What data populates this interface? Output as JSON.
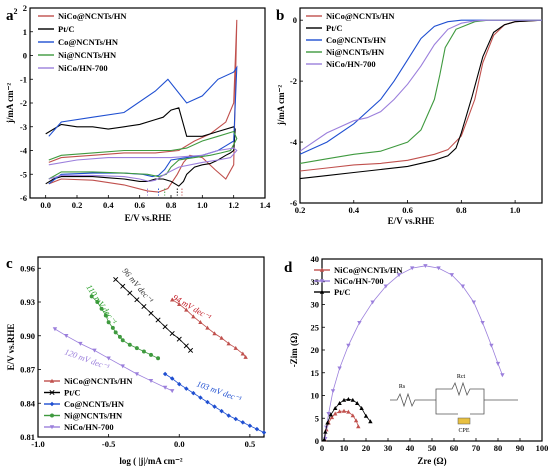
{
  "panel_labels": {
    "a": "a",
    "a_sup": "2",
    "b": "b",
    "c": "c",
    "d": "d"
  },
  "colors": {
    "NiCo@NCNTs/HN": "#c0504d",
    "Pt/C": "#000000",
    "Co@NCNTs/HN": "#1f4fd1",
    "Ni@NCNTs/HN": "#3f9a3f",
    "NiCo/HN-700": "#9b7fdc",
    "cpe": "#e8c040",
    "slope_94": "#c0141e",
    "slope_103": "#1f4fd1",
    "slope_110": "#2aa02a",
    "slope_120": "#9b7fdc",
    "slope_96": "#333333"
  },
  "chart_data": [
    {
      "id": "a",
      "type": "line",
      "title": "",
      "xlabel": "E/V vs.RHE",
      "ylabel": "j/mA cm⁻²",
      "xlim": [
        -0.1,
        1.4
      ],
      "ylim": [
        -6,
        2
      ],
      "xticks": [
        "0.0",
        "0.2",
        "0.4",
        "0.6",
        "0.8",
        "1.0",
        "1.2",
        "1.4"
      ],
      "yticks": [
        "2",
        "1",
        "0",
        "-1",
        "-2",
        "-3",
        "-4",
        "-5",
        "-6"
      ],
      "legend": [
        "NiCo@NCNTs/HN",
        "Pt/C",
        "Co@NCNTs/HN",
        "Ni@NCNTs/HN",
        "NiCo/HN-700"
      ],
      "legend_position": "top-left",
      "series": [
        {
          "name": "NiCo@NCNTs/HN",
          "x": [
            0.02,
            0.1,
            0.3,
            0.5,
            0.65,
            0.72,
            0.78,
            0.84,
            0.88,
            0.92,
            1.0,
            1.08,
            1.15,
            1.2,
            1.22,
            1.2,
            1.15,
            1.05,
            0.95,
            0.85,
            0.7,
            0.5,
            0.3,
            0.1,
            0.02
          ],
          "y": [
            -5.4,
            -5.2,
            -5.25,
            -5.45,
            -5.7,
            -5.75,
            -5.6,
            -5.0,
            -4.5,
            -4.2,
            -4.3,
            -4.8,
            -5.2,
            -4.6,
            1.5,
            -2.0,
            -2.8,
            -3.3,
            -3.6,
            -4.0,
            -4.1,
            -4.1,
            -4.2,
            -4.3,
            -4.5
          ]
        },
        {
          "name": "Pt/C",
          "x": [
            0.0,
            0.05,
            0.1,
            0.2,
            0.3,
            0.4,
            0.5,
            0.6,
            0.65,
            0.7,
            0.75,
            0.8,
            0.85,
            0.88,
            0.9,
            0.95,
            1.0,
            1.05,
            1.1,
            1.15,
            1.18,
            1.2,
            1.21,
            1.2,
            1.1,
            1.0,
            0.9,
            0.85,
            0.8,
            0.75,
            0.7,
            0.6,
            0.5,
            0.4,
            0.3,
            0.2,
            0.1,
            0.0
          ],
          "y": [
            -5.4,
            -5.2,
            -5.1,
            -5.1,
            -5.1,
            -5.15,
            -5.2,
            -5.3,
            -5.3,
            -5.2,
            -5.2,
            -5.3,
            -5.5,
            -5.3,
            -5.0,
            -4.7,
            -4.6,
            -4.55,
            -4.4,
            -4.2,
            -4.1,
            -4.0,
            -3.1,
            -3.0,
            -3.2,
            -3.4,
            -3.4,
            -2.2,
            -2.3,
            -2.6,
            -2.7,
            -2.9,
            -3.0,
            -3.1,
            -3.0,
            -3.0,
            -2.9,
            -3.3
          ]
        },
        {
          "name": "Co@NCNTs/HN",
          "x": [
            0.02,
            0.1,
            0.3,
            0.5,
            0.62,
            0.68,
            0.72,
            0.76,
            0.8,
            0.9,
            1.0,
            1.1,
            1.15,
            1.2,
            1.22,
            1.2,
            1.1,
            1.0,
            0.9,
            0.78,
            0.7,
            0.5,
            0.3,
            0.1,
            0.02
          ],
          "y": [
            -5.4,
            -5.0,
            -4.95,
            -4.95,
            -5.0,
            -5.1,
            -5.05,
            -4.8,
            -4.4,
            -4.3,
            -4.2,
            -4.0,
            -3.8,
            -3.6,
            -0.5,
            -0.7,
            -1.0,
            -1.7,
            -2.0,
            -1.0,
            -1.5,
            -2.4,
            -2.6,
            -2.8,
            -3.4
          ]
        },
        {
          "name": "Ni@NCNTs/HN",
          "x": [
            0.02,
            0.1,
            0.3,
            0.5,
            0.65,
            0.72,
            0.77,
            0.8,
            0.85,
            0.95,
            1.05,
            1.12,
            1.18,
            1.22,
            1.2,
            1.1,
            1.0,
            0.9,
            0.8,
            0.7,
            0.5,
            0.3,
            0.1,
            0.02
          ],
          "y": [
            -5.2,
            -4.9,
            -4.9,
            -4.95,
            -5.0,
            -5.1,
            -5.0,
            -4.7,
            -4.4,
            -4.3,
            -4.2,
            -4.1,
            -4.0,
            -3.5,
            -3.2,
            -3.4,
            -3.6,
            -3.9,
            -4.0,
            -4.0,
            -4.0,
            -4.1,
            -4.2,
            -4.4
          ]
        },
        {
          "name": "NiCo/HN-700",
          "x": [
            0.02,
            0.1,
            0.3,
            0.5,
            0.6,
            0.66,
            0.7,
            0.76,
            0.85,
            1.0,
            1.1,
            1.18,
            1.22,
            1.2,
            1.1,
            1.0,
            0.8,
            0.6,
            0.4,
            0.2,
            0.02
          ],
          "y": [
            -5.2,
            -5.05,
            -5.05,
            -5.1,
            -5.2,
            -5.3,
            -5.25,
            -5.0,
            -4.7,
            -4.5,
            -4.4,
            -4.3,
            -4.0,
            -3.9,
            -4.0,
            -4.2,
            -4.3,
            -4.3,
            -4.3,
            -4.4,
            -4.6
          ]
        }
      ],
      "onset_markers": {
        "x": [
          0.65,
          0.72,
          0.76,
          0.84,
          0.87
        ]
      }
    },
    {
      "id": "b",
      "type": "line",
      "title": "",
      "xlabel": "E/V vs.RHE",
      "ylabel": "j/mA cm⁻²",
      "xlim": [
        0.2,
        1.1
      ],
      "ylim": [
        -6,
        0.4
      ],
      "xticks": [
        "0.2",
        "0.4",
        "0.6",
        "0.8",
        "1.0"
      ],
      "yticks": [
        "0",
        "-2",
        "-4",
        "-6"
      ],
      "legend": [
        "NiCo@NCNTs/HN",
        "Pt/C",
        "Co@NCNTs/HN",
        "Ni@NCNTs/HN",
        "NiCo/HN-700"
      ],
      "legend_position": "top-left",
      "series": [
        {
          "name": "NiCo@NCNTs/HN",
          "x": [
            0.2,
            0.3,
            0.4,
            0.5,
            0.6,
            0.7,
            0.75,
            0.8,
            0.85,
            0.88,
            0.92,
            0.96,
            1.0,
            1.1
          ],
          "y": [
            -4.95,
            -4.85,
            -4.75,
            -4.7,
            -4.6,
            -4.4,
            -4.25,
            -3.8,
            -2.6,
            -1.4,
            -0.5,
            -0.15,
            -0.05,
            0.0
          ]
        },
        {
          "name": "Pt/C",
          "x": [
            0.2,
            0.3,
            0.4,
            0.5,
            0.6,
            0.7,
            0.75,
            0.78,
            0.8,
            0.84,
            0.88,
            0.92,
            0.96,
            1.0,
            1.1
          ],
          "y": [
            -5.2,
            -5.1,
            -5.0,
            -4.9,
            -4.8,
            -4.6,
            -4.45,
            -4.2,
            -3.7,
            -2.5,
            -1.2,
            -0.4,
            -0.15,
            -0.05,
            0.0
          ]
        },
        {
          "name": "Co@NCNTs/HN",
          "x": [
            0.2,
            0.3,
            0.4,
            0.5,
            0.55,
            0.6,
            0.65,
            0.7,
            0.75,
            0.8,
            0.85,
            0.9,
            1.1
          ],
          "y": [
            -4.4,
            -4.0,
            -3.4,
            -2.6,
            -2.0,
            -1.3,
            -0.6,
            -0.2,
            -0.05,
            0.0,
            0.0,
            0.0,
            0.0
          ]
        },
        {
          "name": "Ni@NCNTs/HN",
          "x": [
            0.2,
            0.3,
            0.4,
            0.5,
            0.6,
            0.65,
            0.7,
            0.72,
            0.74,
            0.78,
            0.85,
            0.9,
            1.1
          ],
          "y": [
            -4.7,
            -4.55,
            -4.4,
            -4.3,
            -4.0,
            -3.6,
            -2.6,
            -1.8,
            -0.9,
            -0.3,
            -0.05,
            0.0,
            0.0
          ]
        },
        {
          "name": "NiCo/HN-700",
          "x": [
            0.2,
            0.3,
            0.4,
            0.45,
            0.5,
            0.55,
            0.6,
            0.65,
            0.7,
            0.75,
            0.8,
            0.85,
            0.9,
            1.1
          ],
          "y": [
            -4.3,
            -3.7,
            -3.3,
            -3.2,
            -3.0,
            -2.6,
            -2.1,
            -1.5,
            -0.8,
            -0.3,
            -0.1,
            -0.02,
            0.0,
            0.0
          ]
        }
      ]
    },
    {
      "id": "c",
      "type": "scatter",
      "title": "",
      "xlabel": "log ( |j|/mA cm⁻²",
      "ylabel": "E/V vs.RHE",
      "xlim": [
        -1.0,
        0.6
      ],
      "ylim": [
        0.81,
        0.97
      ],
      "xticks": [
        "-1.0",
        "-0.5",
        "0.0",
        "0.5"
      ],
      "yticks": [
        "0.96",
        "0.93",
        "0.90",
        "0.87",
        "0.84",
        "0.81"
      ],
      "legend": [
        "NiCo@NCNTs/HN",
        "Pt/C",
        "Co@NCNTs/HN",
        "Ni@NCNTs/HN",
        "NiCo/HN-700"
      ],
      "legend_position": "bottom-left",
      "series": [
        {
          "name": "NiCo@NCNTs/HN",
          "x": [
            -0.05,
            0.0,
            0.05,
            0.1,
            0.15,
            0.2,
            0.25,
            0.3,
            0.35,
            0.4,
            0.45,
            0.47
          ],
          "y": [
            0.932,
            0.928,
            0.923,
            0.917,
            0.912,
            0.907,
            0.902,
            0.898,
            0.893,
            0.889,
            0.884,
            0.881
          ]
        },
        {
          "name": "Pt/C",
          "x": [
            -0.45,
            -0.4,
            -0.35,
            -0.3,
            -0.25,
            -0.2,
            -0.15,
            -0.1,
            -0.05,
            0.0,
            0.05,
            0.08
          ],
          "y": [
            0.95,
            0.944,
            0.938,
            0.932,
            0.926,
            0.92,
            0.914,
            0.908,
            0.902,
            0.897,
            0.891,
            0.887
          ]
        },
        {
          "name": "Co@NCNTs/HN",
          "x": [
            -0.1,
            -0.05,
            0.0,
            0.05,
            0.1,
            0.15,
            0.2,
            0.25,
            0.3,
            0.35,
            0.4,
            0.45,
            0.5,
            0.55,
            0.6
          ],
          "y": [
            0.866,
            0.862,
            0.857,
            0.853,
            0.849,
            0.845,
            0.841,
            0.837,
            0.833,
            0.829,
            0.826,
            0.823,
            0.82,
            0.817,
            0.814
          ]
        },
        {
          "name": "Ni@NCNTs/HN",
          "x": [
            -0.62,
            -0.58,
            -0.55,
            -0.52,
            -0.5,
            -0.47,
            -0.45,
            -0.42,
            -0.4,
            -0.35,
            -0.3,
            -0.25,
            -0.2,
            -0.15
          ],
          "y": [
            0.935,
            0.93,
            0.924,
            0.918,
            0.912,
            0.907,
            0.903,
            0.899,
            0.896,
            0.892,
            0.889,
            0.886,
            0.883,
            0.88
          ]
        },
        {
          "name": "NiCo/HN-700",
          "x": [
            -0.88,
            -0.8,
            -0.7,
            -0.6,
            -0.5,
            -0.4,
            -0.3,
            -0.2,
            -0.1,
            -0.05
          ],
          "y": [
            0.906,
            0.9,
            0.893,
            0.887,
            0.88,
            0.873,
            0.866,
            0.86,
            0.854,
            0.851
          ]
        }
      ],
      "annotations": [
        {
          "text": "94 mV dec⁻¹",
          "color_key": "slope_94"
        },
        {
          "text": "96 mV dec⁻¹",
          "color_key": "slope_96"
        },
        {
          "text": "110 mV dec⁻¹",
          "color_key": "slope_110"
        },
        {
          "text": "120 mV dec⁻¹",
          "color_key": "slope_120"
        },
        {
          "text": "103 mV dec⁻¹",
          "color_key": "slope_103"
        }
      ]
    },
    {
      "id": "d",
      "type": "scatter",
      "title": "",
      "xlabel": "Zre  (Ω)",
      "ylabel": "-Zim (Ω)",
      "xlim": [
        0,
        100
      ],
      "ylim": [
        0,
        40
      ],
      "xticks": [
        "0",
        "10",
        "20",
        "30",
        "40",
        "50",
        "60",
        "70",
        "80",
        "90",
        "100"
      ],
      "yticks": [
        "0",
        "5",
        "10",
        "15",
        "20",
        "25",
        "30",
        "35",
        "40"
      ],
      "legend": [
        "NiCo@NCNTs/HN",
        "NiCo/HN-700",
        "Pt/C"
      ],
      "legend_position": "top-left",
      "series": [
        {
          "name": "NiCo@NCNTs/HN",
          "x": [
            1.2,
            2,
            3,
            4.5,
            6,
            8,
            10,
            12,
            14,
            15.5,
            16.5
          ],
          "y": [
            0.3,
            2.5,
            4,
            5.2,
            6,
            6.5,
            6.6,
            6.4,
            5.6,
            4.5,
            3.2
          ]
        },
        {
          "name": "NiCo/HN-700",
          "x": [
            1.5,
            2,
            3,
            5,
            8,
            12,
            17,
            23,
            29,
            35,
            41,
            47,
            53,
            59,
            64,
            69,
            73,
            77,
            80,
            82
          ],
          "y": [
            0.5,
            3,
            6,
            11,
            16,
            21,
            26,
            30.5,
            34,
            36.5,
            38,
            38.5,
            38,
            36.5,
            34,
            30.5,
            26,
            21,
            17,
            14.5
          ]
        },
        {
          "name": "Pt/C",
          "x": [
            1.0,
            1.5,
            2.5,
            4,
            6,
            8,
            10,
            12,
            14,
            16,
            18,
            20,
            22
          ],
          "y": [
            0.3,
            2,
            4,
            5.8,
            7.2,
            8.3,
            9,
            9.2,
            9,
            8.3,
            7.2,
            5.5,
            4.3
          ]
        }
      ],
      "circuit_labels": {
        "rs": "Rs",
        "rct": "Rct",
        "cpe": "CPE"
      }
    }
  ]
}
